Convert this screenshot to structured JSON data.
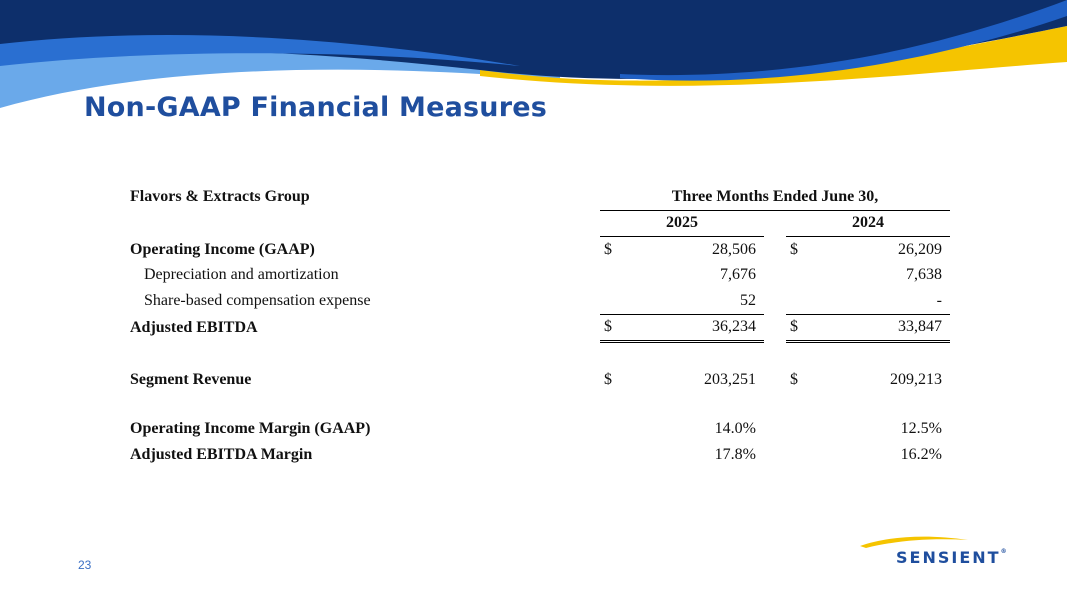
{
  "slide": {
    "title": "Non-GAAP Financial Measures",
    "page_number": "23",
    "logo_text": "SENSIENT",
    "logo_tm": "®"
  },
  "colors": {
    "primary_blue": "#1f4e9e",
    "dark_navy": "#0d2f6b",
    "mid_blue": "#2a6fd1",
    "light_blue": "#6aa9ea",
    "gold": "#f5c400"
  },
  "table": {
    "segment": "Flavors & Extracts Group",
    "period_header": "Three Months Ended June 30,",
    "year_1": "2025",
    "year_2": "2024",
    "currency": "$",
    "rows": {
      "operating_income": {
        "label": "Operating Income (GAAP)",
        "v2025": "28,506",
        "v2024": "26,209"
      },
      "depreciation": {
        "label": "Depreciation and amortization",
        "v2025": "7,676",
        "v2024": "7,638"
      },
      "share_based": {
        "label": "Share-based compensation expense",
        "v2025": "52",
        "v2024": "-"
      },
      "adjusted_ebitda": {
        "label": "Adjusted EBITDA",
        "v2025": "36,234",
        "v2024": "33,847"
      },
      "segment_revenue": {
        "label": "Segment Revenue",
        "v2025": "203,251",
        "v2024": "209,213"
      },
      "operating_margin": {
        "label": "Operating Income Margin (GAAP)",
        "v2025": "14.0%",
        "v2024": "12.5%"
      },
      "ebitda_margin": {
        "label": "Adjusted EBITDA Margin",
        "v2025": "17.8%",
        "v2024": "16.2%"
      }
    }
  }
}
